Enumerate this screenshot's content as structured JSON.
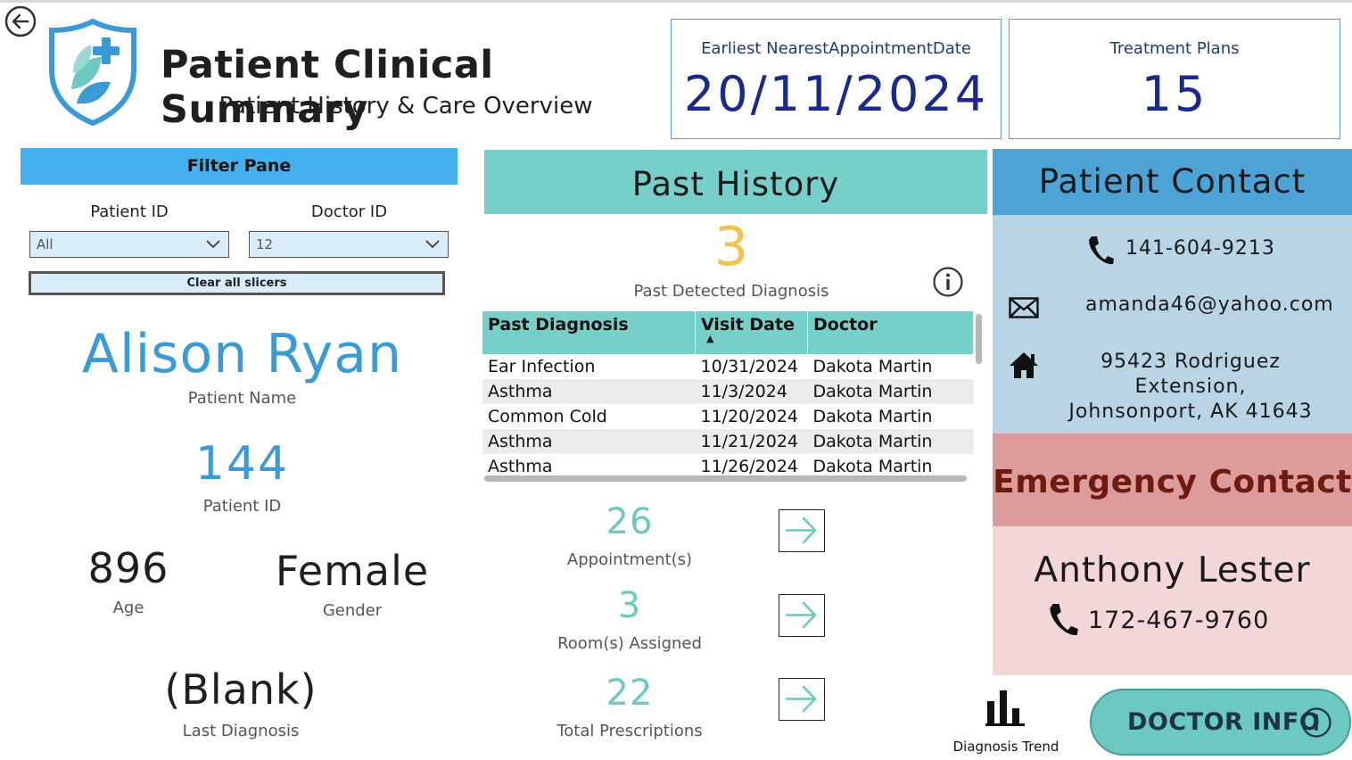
{
  "header": {
    "title": "Patient Clinical Summary",
    "subtitle": "Patient History & Care Overview"
  },
  "kpis": [
    {
      "label": "Earliest NearestAppointmentDate",
      "value": "20/11/2024"
    },
    {
      "label": "Treatment Plans",
      "value": "15"
    }
  ],
  "filter": {
    "title": "Filter Pane",
    "patient_label": "Patient ID",
    "patient_value": "All",
    "doctor_label": "Doctor ID",
    "doctor_value": "12",
    "clear_label": "Clear all slicers"
  },
  "patient": {
    "name": "Alison Ryan",
    "name_label": "Patient Name",
    "id": "144",
    "id_label": "Patient ID",
    "age": "896",
    "age_label": "Age",
    "gender": "Female",
    "gender_label": "Gender",
    "last_diagnosis": "(Blank)",
    "last_diagnosis_label": "Last Diagnosis"
  },
  "past_history": {
    "title": "Past History",
    "count": "3",
    "count_label": "Past Detected Diagnosis",
    "columns": [
      "Past Diagnosis",
      "Visit Date",
      "Doctor"
    ],
    "rows": [
      [
        "Ear Infection",
        "10/31/2024",
        "Dakota Martin"
      ],
      [
        "Asthma",
        "11/3/2024",
        "Dakota Martin"
      ],
      [
        "Common Cold",
        "11/20/2024",
        "Dakota Martin"
      ],
      [
        "Asthma",
        "11/21/2024",
        "Dakota Martin"
      ],
      [
        "Asthma",
        "11/26/2024",
        "Dakota Martin"
      ]
    ]
  },
  "stats": [
    {
      "value": "26",
      "label": "Appointment(s)"
    },
    {
      "value": "3",
      "label": "Room(s) Assigned"
    },
    {
      "value": "22",
      "label": "Total Prescriptions"
    }
  ],
  "contact": {
    "title": "Patient Contact",
    "phone": "141-604-9213",
    "email": "amanda46@yahoo.com",
    "address_line1": "95423 Rodriguez Extension,",
    "address_line2": "Johnsonport, AK 41643"
  },
  "emergency": {
    "title": "Emergency Contact",
    "name": "Anthony Lester",
    "phone": "172-467-9760"
  },
  "footer": {
    "trend_label": "Diagnosis Trend",
    "doctor_button": "DOCTOR INFO"
  },
  "icons": [
    "back-arrow-icon",
    "health-shield-logo",
    "chevron-down-icon",
    "info-icon",
    "arrow-right-icon",
    "phone-icon",
    "envelope-icon",
    "home-icon",
    "bar-chart-icon"
  ],
  "colors": {
    "filter_header": "#45b0f0",
    "teal": "#76cfc8",
    "patient_blue": "#3a9ad6",
    "past_count_yellow": "#f2c14e",
    "contact_header": "#4ea3d6",
    "contact_body": "#b9d4e5",
    "emergency_header": "#dd9c9c",
    "emergency_text": "#6e1a10",
    "emergency_body": "#f2d6d8",
    "kpi_value": "#1a2a8a"
  }
}
